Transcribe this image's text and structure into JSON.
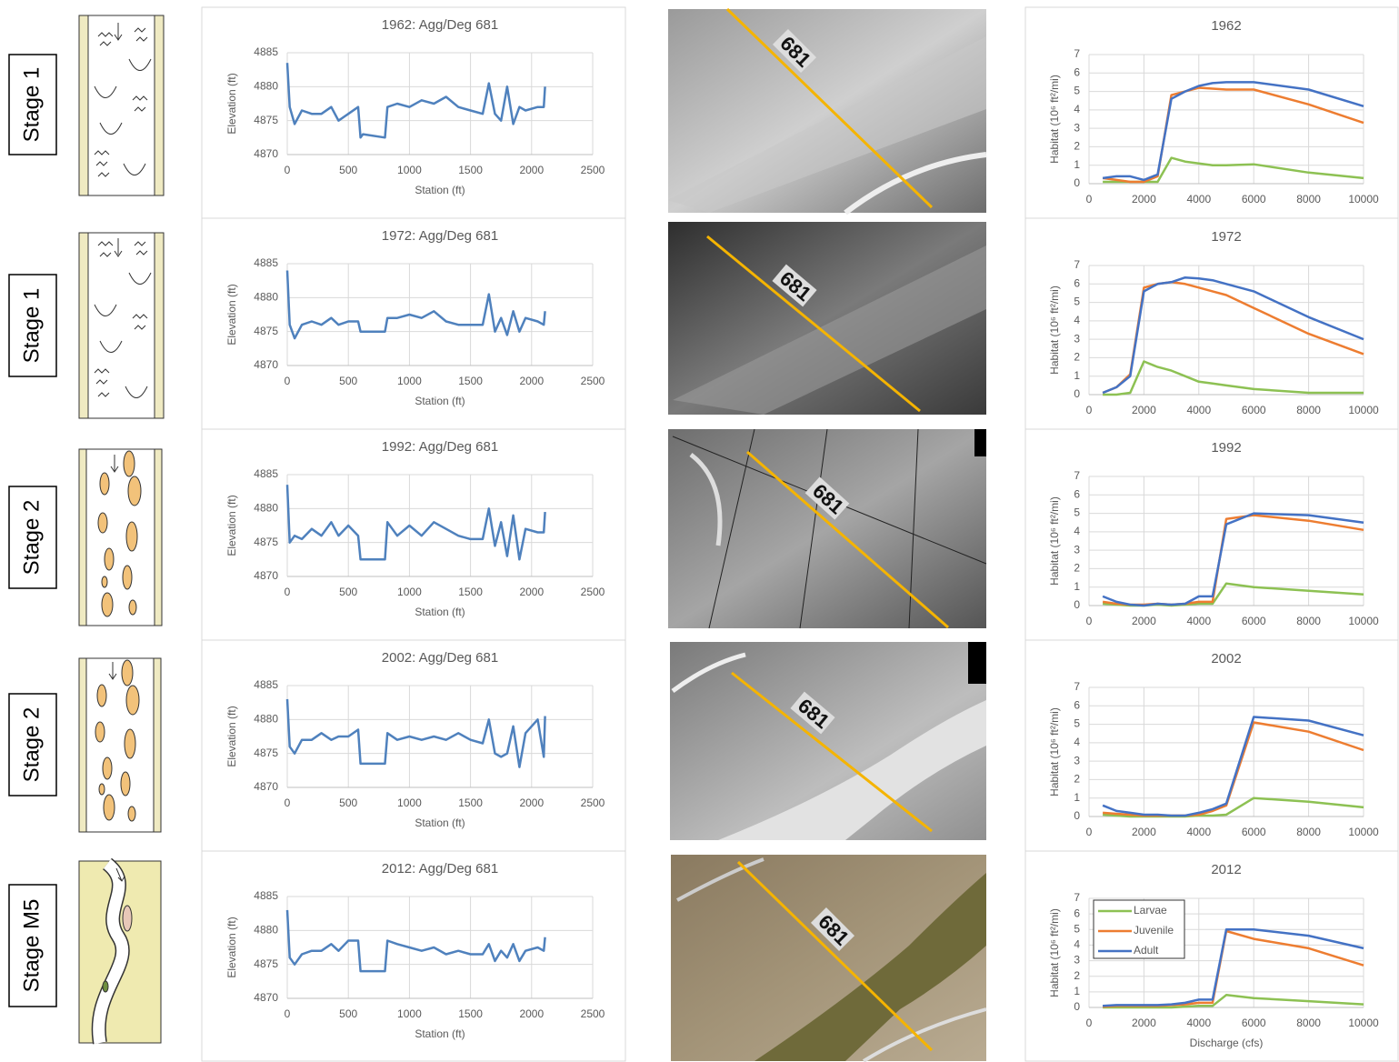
{
  "stages": [
    "Stage 1",
    "Stage 1",
    "Stage 2",
    "Stage 2",
    "Stage M5"
  ],
  "photo_labels": [
    "681",
    "681",
    "681",
    "681",
    "681"
  ],
  "chart_data": [
    {
      "type": "line",
      "title": "1962: Agg/Deg 681",
      "x_label": "Station (ft)",
      "y_label": "Elevation (ft)",
      "x": [
        0,
        20,
        60,
        120,
        200,
        280,
        360,
        420,
        500,
        580,
        600,
        620,
        800,
        820,
        900,
        1000,
        1100,
        1200,
        1300,
        1400,
        1500,
        1600,
        1650,
        1700,
        1750,
        1800,
        1850,
        1900,
        1950,
        2050,
        2100,
        2110
      ],
      "series": [
        {
          "color": "#4f81bd",
          "values": [
            4883.5,
            4877,
            4874.5,
            4876.5,
            4876,
            4876,
            4877,
            4875,
            4876,
            4877,
            4872.5,
            4873,
            4872.5,
            4877,
            4877.5,
            4877,
            4878,
            4877.5,
            4878.5,
            4877,
            4876.5,
            4876,
            4880.5,
            4876,
            4875,
            4880,
            4874.5,
            4877,
            4876.5,
            4877,
            4877,
            4880
          ]
        }
      ],
      "xlim": [
        0,
        2500
      ],
      "ylim": [
        4870,
        4885
      ],
      "xticks": [
        0,
        500,
        1000,
        1500,
        2000,
        2500
      ],
      "yticks": [
        4870,
        4875,
        4880,
        4885
      ],
      "grid": true
    },
    {
      "type": "line",
      "title": "1962",
      "y_label": "Habitat (10⁶ ft²/mi)",
      "x": [
        500,
        1000,
        1500,
        2000,
        2500,
        3000,
        3500,
        4000,
        4500,
        5000,
        6000,
        8000,
        10000
      ],
      "series": [
        {
          "color": "#8dc153",
          "values": [
            0.1,
            0.1,
            0.1,
            0.1,
            0.1,
            1.4,
            1.2,
            1.1,
            1.0,
            1.0,
            1.05,
            0.6,
            0.3
          ]
        },
        {
          "color": "#ed7d31",
          "values": [
            0.3,
            0.2,
            0.1,
            0.1,
            0.4,
            4.8,
            5.0,
            5.2,
            5.15,
            5.1,
            5.1,
            4.3,
            3.3
          ]
        },
        {
          "color": "#4472c4",
          "values": [
            0.3,
            0.4,
            0.4,
            0.2,
            0.5,
            4.6,
            5.0,
            5.3,
            5.45,
            5.5,
            5.5,
            5.1,
            4.2
          ]
        }
      ],
      "xlim": [
        0,
        10000
      ],
      "ylim": [
        0,
        7
      ],
      "xticks": [
        0,
        2000,
        4000,
        6000,
        8000,
        10000
      ],
      "yticks": [
        0,
        1,
        2,
        3,
        4,
        5,
        6,
        7
      ],
      "grid": true
    },
    {
      "type": "line",
      "title": "1972: Agg/Deg 681",
      "x_label": "Station (ft)",
      "y_label": "Elevation (ft)",
      "x": [
        0,
        20,
        60,
        120,
        200,
        280,
        360,
        420,
        500,
        580,
        600,
        620,
        800,
        820,
        900,
        1000,
        1100,
        1200,
        1300,
        1400,
        1500,
        1600,
        1650,
        1700,
        1750,
        1800,
        1850,
        1900,
        1950,
        2050,
        2100,
        2110
      ],
      "series": [
        {
          "color": "#4f81bd",
          "values": [
            4884,
            4876,
            4874,
            4876,
            4876.5,
            4876,
            4877,
            4876,
            4876.5,
            4876.5,
            4875,
            4875,
            4875,
            4877,
            4877,
            4877.5,
            4877,
            4878,
            4876.5,
            4876,
            4876,
            4876,
            4880.5,
            4875,
            4877,
            4874.5,
            4878,
            4875,
            4877,
            4876.5,
            4876,
            4878
          ]
        }
      ],
      "xlim": [
        0,
        2500
      ],
      "ylim": [
        4870,
        4885
      ],
      "xticks": [
        0,
        500,
        1000,
        1500,
        2000,
        2500
      ],
      "yticks": [
        4870,
        4875,
        4880,
        4885
      ],
      "grid": true
    },
    {
      "type": "line",
      "title": "1972",
      "y_label": "Habitat (10⁶ ft²/mi)",
      "x": [
        500,
        1000,
        1500,
        2000,
        2500,
        3000,
        3500,
        4000,
        4500,
        5000,
        6000,
        8000,
        10000
      ],
      "series": [
        {
          "color": "#8dc153",
          "values": [
            0,
            0,
            0.1,
            1.8,
            1.5,
            1.3,
            1.0,
            0.7,
            0.6,
            0.5,
            0.3,
            0.1,
            0.1
          ]
        },
        {
          "color": "#ed7d31",
          "values": [
            0.1,
            0.4,
            1.1,
            5.8,
            6.0,
            6.1,
            6.0,
            5.8,
            5.6,
            5.4,
            4.7,
            3.3,
            2.2
          ]
        },
        {
          "color": "#4472c4",
          "values": [
            0.1,
            0.4,
            1.0,
            5.6,
            6.0,
            6.1,
            6.35,
            6.3,
            6.2,
            6.0,
            5.6,
            4.2,
            3.0
          ]
        }
      ],
      "xlim": [
        0,
        10000
      ],
      "ylim": [
        0,
        7
      ],
      "xticks": [
        0,
        2000,
        4000,
        6000,
        8000,
        10000
      ],
      "yticks": [
        0,
        1,
        2,
        3,
        4,
        5,
        6,
        7
      ],
      "grid": true
    },
    {
      "type": "line",
      "title": "1992: Agg/Deg 681",
      "x_label": "Station (ft)",
      "y_label": "Elevation (ft)",
      "x": [
        0,
        20,
        60,
        120,
        200,
        280,
        360,
        420,
        500,
        580,
        600,
        620,
        800,
        820,
        900,
        1000,
        1100,
        1200,
        1300,
        1400,
        1500,
        1600,
        1650,
        1700,
        1750,
        1800,
        1850,
        1900,
        1950,
        2050,
        2100,
        2110
      ],
      "series": [
        {
          "color": "#4f81bd",
          "values": [
            4883.5,
            4875,
            4876,
            4875.5,
            4877,
            4876,
            4878,
            4876,
            4877.5,
            4876,
            4872.5,
            4872.5,
            4872.5,
            4878,
            4876,
            4877.5,
            4876,
            4878,
            4877,
            4876,
            4875.5,
            4875.5,
            4880,
            4874.5,
            4878,
            4873,
            4879,
            4872.5,
            4877,
            4876.5,
            4876.5,
            4879.5
          ]
        }
      ],
      "xlim": [
        0,
        2500
      ],
      "ylim": [
        4870,
        4885
      ],
      "xticks": [
        0,
        500,
        1000,
        1500,
        2000,
        2500
      ],
      "yticks": [
        4870,
        4875,
        4880,
        4885
      ],
      "grid": true
    },
    {
      "type": "line",
      "title": "1992",
      "y_label": "Habitat (10⁶ ft²/mi)",
      "x": [
        500,
        1000,
        1500,
        2000,
        2500,
        3000,
        3500,
        4000,
        4500,
        5000,
        6000,
        8000,
        10000
      ],
      "series": [
        {
          "color": "#8dc153",
          "values": [
            0.1,
            0.05,
            0,
            0,
            0.05,
            0,
            0.05,
            0.1,
            0.1,
            1.2,
            1.0,
            0.8,
            0.6
          ]
        },
        {
          "color": "#ed7d31",
          "values": [
            0.2,
            0.1,
            0.05,
            0.05,
            0.1,
            0.05,
            0.1,
            0.2,
            0.2,
            4.7,
            4.9,
            4.6,
            4.1
          ]
        },
        {
          "color": "#4472c4",
          "values": [
            0.5,
            0.2,
            0.05,
            0,
            0.1,
            0.05,
            0.1,
            0.5,
            0.5,
            4.4,
            5.0,
            4.9,
            4.5
          ]
        }
      ],
      "xlim": [
        0,
        10000
      ],
      "ylim": [
        0,
        7
      ],
      "xticks": [
        0,
        2000,
        4000,
        6000,
        8000,
        10000
      ],
      "yticks": [
        0,
        1,
        2,
        3,
        4,
        5,
        6,
        7
      ],
      "grid": true
    },
    {
      "type": "line",
      "title": "2002: Agg/Deg 681",
      "x_label": "Station (ft)",
      "y_label": "Elevation (ft)",
      "x": [
        0,
        20,
        60,
        120,
        200,
        280,
        360,
        420,
        500,
        580,
        600,
        620,
        800,
        820,
        900,
        1000,
        1100,
        1200,
        1300,
        1400,
        1500,
        1600,
        1650,
        1700,
        1750,
        1800,
        1850,
        1900,
        1950,
        2050,
        2100,
        2110
      ],
      "series": [
        {
          "color": "#4f81bd",
          "values": [
            4883,
            4876,
            4875,
            4877,
            4877,
            4878,
            4877,
            4877.5,
            4877.5,
            4878.5,
            4873.5,
            4873.5,
            4873.5,
            4878,
            4877,
            4877.5,
            4877,
            4877.5,
            4877,
            4878,
            4877,
            4876.5,
            4880,
            4875,
            4874.5,
            4875,
            4879,
            4873,
            4878,
            4880,
            4874.5,
            4880.5
          ]
        }
      ],
      "xlim": [
        0,
        2500
      ],
      "ylim": [
        4870,
        4885
      ],
      "xticks": [
        0,
        500,
        1000,
        1500,
        2000,
        2500
      ],
      "yticks": [
        4870,
        4875,
        4880,
        4885
      ],
      "grid": true
    },
    {
      "type": "line",
      "title": "2002",
      "y_label": "Habitat (10⁶ ft²/mi)",
      "x": [
        500,
        1000,
        1500,
        2000,
        2500,
        3000,
        3500,
        4000,
        4500,
        5000,
        6000,
        8000,
        10000
      ],
      "series": [
        {
          "color": "#8dc153",
          "values": [
            0.1,
            0.05,
            0,
            0,
            0,
            0,
            0,
            0.05,
            0.05,
            0.1,
            1.0,
            0.8,
            0.5
          ]
        },
        {
          "color": "#ed7d31",
          "values": [
            0.2,
            0.15,
            0.1,
            0.05,
            0.05,
            0.05,
            0.05,
            0.1,
            0.3,
            0.6,
            5.1,
            4.6,
            3.6
          ]
        },
        {
          "color": "#4472c4",
          "values": [
            0.6,
            0.3,
            0.2,
            0.1,
            0.1,
            0.05,
            0.05,
            0.2,
            0.4,
            0.7,
            5.4,
            5.2,
            4.4
          ]
        }
      ],
      "xlim": [
        0,
        10000
      ],
      "ylim": [
        0,
        7
      ],
      "xticks": [
        0,
        2000,
        4000,
        6000,
        8000,
        10000
      ],
      "yticks": [
        0,
        1,
        2,
        3,
        4,
        5,
        6,
        7
      ],
      "grid": true
    },
    {
      "type": "line",
      "title": "2012: Agg/Deg 681",
      "x_label": "Station (ft)",
      "y_label": "Elevation (ft)",
      "x": [
        0,
        20,
        60,
        120,
        200,
        280,
        360,
        420,
        500,
        580,
        600,
        620,
        800,
        820,
        900,
        1000,
        1100,
        1200,
        1300,
        1400,
        1500,
        1600,
        1650,
        1700,
        1750,
        1800,
        1850,
        1900,
        1950,
        2050,
        2100,
        2110
      ],
      "series": [
        {
          "color": "#4f81bd",
          "values": [
            4883,
            4876,
            4875,
            4876.5,
            4877,
            4877,
            4878,
            4877,
            4878.5,
            4878.5,
            4874,
            4874,
            4874,
            4878.5,
            4878,
            4877.5,
            4877,
            4877.5,
            4876.5,
            4877,
            4876.5,
            4876.5,
            4878,
            4875.5,
            4877,
            4876,
            4878,
            4875.5,
            4877,
            4877.5,
            4877,
            4879
          ]
        }
      ],
      "xlim": [
        0,
        2500
      ],
      "ylim": [
        4870,
        4885
      ],
      "xticks": [
        0,
        500,
        1000,
        1500,
        2000,
        2500
      ],
      "yticks": [
        4870,
        4875,
        4880,
        4885
      ],
      "grid": true
    },
    {
      "type": "line",
      "title": "2012",
      "x_label": "Discharge (cfs)",
      "y_label": "Habitat (10⁶ ft²/mi)",
      "x": [
        500,
        1000,
        1500,
        2000,
        2500,
        3000,
        3500,
        4000,
        4500,
        5000,
        6000,
        8000,
        10000
      ],
      "series": [
        {
          "name": "Larvae",
          "color": "#8dc153",
          "values": [
            0,
            0,
            0,
            0,
            0,
            0,
            0.05,
            0.1,
            0.1,
            0.8,
            0.6,
            0.4,
            0.2
          ]
        },
        {
          "name": "Juvenile",
          "color": "#ed7d31",
          "values": [
            0.05,
            0.1,
            0.1,
            0.1,
            0.1,
            0.15,
            0.2,
            0.3,
            0.3,
            4.9,
            4.4,
            3.8,
            2.7
          ]
        },
        {
          "name": "Adult",
          "color": "#4472c4",
          "values": [
            0.1,
            0.15,
            0.15,
            0.15,
            0.15,
            0.2,
            0.3,
            0.5,
            0.5,
            5.0,
            5.0,
            4.6,
            3.8
          ]
        }
      ],
      "xlim": [
        0,
        10000
      ],
      "ylim": [
        0,
        7
      ],
      "xticks": [
        0,
        2000,
        4000,
        6000,
        8000,
        10000
      ],
      "yticks": [
        0,
        1,
        2,
        3,
        4,
        5,
        6,
        7
      ],
      "grid": true,
      "legend": "upper-left"
    }
  ]
}
